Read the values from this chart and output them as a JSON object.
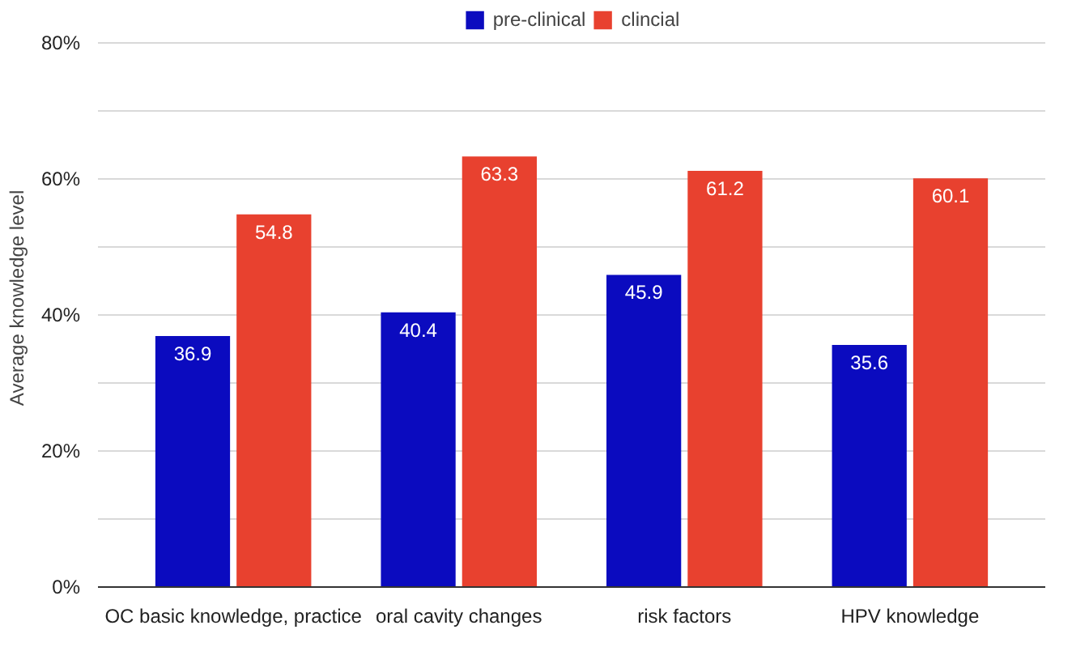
{
  "chart_data": {
    "type": "bar",
    "ylabel": "Average knowledge level",
    "categories": [
      "OC basic knowledge, practice",
      "oral cavity changes",
      "risk factors",
      "HPV knowledge"
    ],
    "series": [
      {
        "name": "pre-clinical",
        "color": "#0b0bbf",
        "values": [
          36.9,
          40.4,
          45.9,
          35.6
        ]
      },
      {
        "name": "clincial",
        "color": "#e8412f",
        "values": [
          54.8,
          63.3,
          61.2,
          60.1
        ]
      }
    ],
    "ylim": [
      0,
      85
    ],
    "yticks": [
      {
        "value": 0,
        "label": "0%"
      },
      {
        "value": 10,
        "label": null
      },
      {
        "value": 20,
        "label": "20%"
      },
      {
        "value": 30,
        "label": null
      },
      {
        "value": 40,
        "label": "40%"
      },
      {
        "value": 50,
        "label": null
      },
      {
        "value": 60,
        "label": "60%"
      },
      {
        "value": 70,
        "label": null
      },
      {
        "value": 80,
        "label": "80%"
      }
    ],
    "grid": "y",
    "legend": "top",
    "data_labels": true
  }
}
